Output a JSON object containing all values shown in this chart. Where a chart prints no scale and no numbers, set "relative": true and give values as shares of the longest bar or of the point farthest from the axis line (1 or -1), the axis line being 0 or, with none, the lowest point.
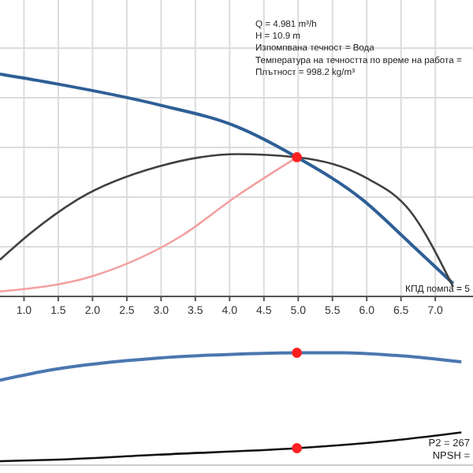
{
  "chart_data": [
    {
      "type": "line",
      "relative": true,
      "grid": true,
      "line_style": "solid",
      "tick_labels": "x",
      "xlim": [
        0.65,
        7.55
      ],
      "xticks": [
        {
          "value": 1,
          "label": "1.0"
        },
        {
          "value": 1.5,
          "label": "1.5"
        },
        {
          "value": 2,
          "label": "2.0"
        },
        {
          "value": 2.5,
          "label": "2.5"
        },
        {
          "value": 3,
          "label": "3.0"
        },
        {
          "value": 3.5,
          "label": "3.5"
        },
        {
          "value": 4,
          "label": "4.0"
        },
        {
          "value": 4.5,
          "label": "4.5"
        },
        {
          "value": 5,
          "label": "5.0"
        },
        {
          "value": 5.5,
          "label": "5.5"
        },
        {
          "value": 6,
          "label": "6.0"
        },
        {
          "value": 6.5,
          "label": "6.5"
        },
        {
          "value": 7,
          "label": "7.0"
        }
      ],
      "annotations": [
        "Q = 4.981 m³/h",
        "H = 10.9 m",
        "Изпомпвана течност = Вода",
        "Температура на течността по време на работа =",
        "Плътност = 998.2 kg/m³",
        "КПД помпа = 5"
      ],
      "series": [
        {
          "color": "#2e5f96",
          "x": [
            0.65,
            1.46,
            2.95,
            4.11,
            4.981,
            5.95,
            6.64,
            7.26
          ],
          "values": [
            1.0,
            0.957,
            0.863,
            0.763,
            0.626,
            0.432,
            0.237,
            0.058
          ]
        },
        {
          "color": "#404040",
          "x": [
            0.65,
            1.11,
            1.8,
            2.95,
            4.11,
            4.981,
            5.95,
            6.64,
            7.26
          ],
          "values": [
            0.165,
            0.288,
            0.439,
            0.583,
            0.64,
            0.626,
            0.54,
            0.381,
            0.043
          ]
        },
        {
          "color": "#f4a0a0",
          "x": [
            0.65,
            2.03,
            3.3,
            4.11,
            4.981
          ],
          "values": [
            0.022,
            0.094,
            0.273,
            0.453,
            0.626
          ]
        },
        {
          "type": "scatter",
          "marker": "circle",
          "color": "#ff2020",
          "x": [
            4.981
          ],
          "values": [
            0.626
          ]
        }
      ]
    },
    {
      "type": "line",
      "relative": true,
      "grid": "x",
      "line_style": "solid",
      "tick_labels": false,
      "xlim": [
        0.65,
        7.55
      ],
      "annotations": [
        "P2 = 267",
        "NPSH ="
      ],
      "series": [
        {
          "color": "#4a77b0",
          "x": [
            0.65,
            1.41,
            2.95,
            4.11,
            4.981,
            5.65,
            6.41,
            7.38
          ],
          "values": [
            0.756,
            0.849,
            0.953,
            0.988,
            1.0,
            1.0,
            0.977,
            0.919
          ]
        },
        {
          "color": "#111111",
          "x": [
            0.65,
            1.41,
            2.95,
            4.981,
            6.41,
            7.38
          ],
          "values": [
            0.035,
            0.047,
            0.093,
            0.151,
            0.221,
            0.291
          ]
        },
        {
          "type": "scatter",
          "marker": "circle",
          "color": "#ff2020",
          "x": [
            4.981,
            4.981
          ],
          "values": [
            1.0,
            0.151
          ]
        }
      ]
    }
  ]
}
